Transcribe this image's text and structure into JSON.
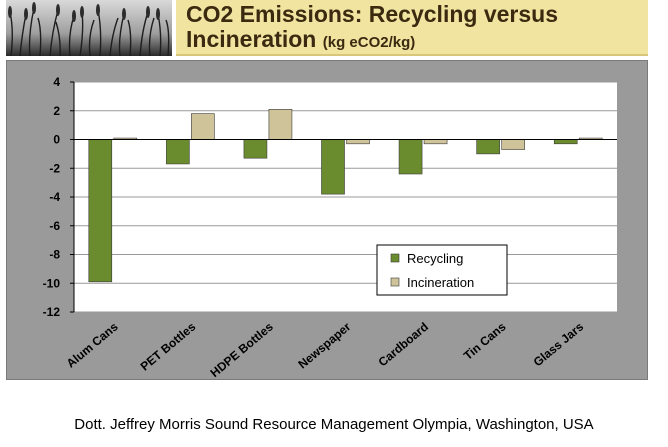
{
  "header": {
    "title_line1": "CO2 Emissions: Recycling versus",
    "title_line2": "Incineration",
    "title_unit": "(kg eCO2/kg)",
    "image_icon": "wheat-field-photo"
  },
  "colors": {
    "recycling": "#6b8c2e",
    "incineration": "#cfc39a",
    "plot_background": "#ffffff",
    "panel_background": "#9a9a9a",
    "header_background": "#f1e3a0"
  },
  "chart_data": {
    "type": "bar",
    "categories": [
      "Alum Cans",
      "PET Bottles",
      "HDPE Bottles",
      "Newspaper",
      "Cardboard",
      "Tin Cans",
      "Glass Jars"
    ],
    "series": [
      {
        "name": "Recycling",
        "values": [
          -9.9,
          -1.7,
          -1.3,
          -3.8,
          -2.4,
          -1.0,
          -0.3
        ]
      },
      {
        "name": "Incineration",
        "values": [
          0.1,
          1.8,
          2.1,
          -0.3,
          -0.3,
          -0.7,
          0.1
        ]
      }
    ],
    "ylim": [
      -12,
      4
    ],
    "yticks": [
      4,
      2,
      0,
      -2,
      -4,
      -6,
      -8,
      -10,
      -12
    ],
    "grid": true,
    "legend_position": "lower-right"
  },
  "caption": "Dott. Jeffrey Morris Sound Resource Management Olympia, Washington, USA"
}
